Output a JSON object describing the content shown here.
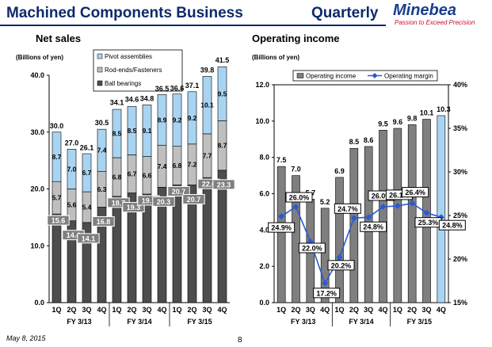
{
  "header": {
    "title": "Machined Components Business",
    "period": "Quarterly",
    "logo_name": "Minebea",
    "logo_tagline": "Passion to Exceed Precision"
  },
  "footer": {
    "date": "May 8, 2015",
    "page": "8"
  },
  "chart_data": [
    {
      "type": "bar",
      "stacked": true,
      "title": "Net sales",
      "ylabel": "(Billions of yen)",
      "ylim": [
        0,
        40
      ],
      "yticks": [
        "0.0",
        "10.0",
        "20.0",
        "30.0",
        "40.0"
      ],
      "categories": [
        "1Q",
        "2Q",
        "3Q",
        "4Q",
        "1Q",
        "2Q",
        "3Q",
        "4Q",
        "1Q",
        "2Q",
        "3Q",
        "4Q"
      ],
      "groups": [
        "FY 3/13",
        "FY 3/14",
        "FY 3/15"
      ],
      "legend_position": "top",
      "series": [
        {
          "name": "Ball bearings",
          "color": "#4d4d4d",
          "values": [
            15.6,
            14.4,
            14.1,
            16.8,
            18.7,
            19.3,
            19.1,
            20.3,
            20.7,
            20.7,
            22.0,
            23.3
          ],
          "labels": [
            "15.6",
            "14.4",
            "14.1",
            "16.8",
            "18.7",
            "19.3",
            "19.1",
            "20.3",
            "20.7",
            "20.7",
            "22.0",
            "23.3"
          ]
        },
        {
          "name": "Rod-ends/Fasteners",
          "color": "#bfbfbf",
          "values": [
            5.7,
            5.6,
            5.4,
            6.3,
            6.8,
            6.7,
            6.6,
            7.4,
            6.8,
            7.2,
            7.7,
            8.7
          ],
          "labels": [
            "5.7",
            "5.6",
            "5.4",
            "6.3",
            "6.8",
            "6.7",
            "6.6",
            "7.4",
            "6.8",
            "7.2",
            "7.7",
            "8.7"
          ]
        },
        {
          "name": "Pivot assemblies",
          "color": "#a8d4f2",
          "values": [
            8.7,
            7.0,
            6.7,
            7.4,
            8.5,
            8.5,
            9.1,
            8.9,
            9.2,
            9.2,
            10.1,
            9.5
          ],
          "labels": [
            "8.7",
            "7.0",
            "6.7",
            "7.4",
            "8.5",
            "8.5",
            "9.1",
            "8.9",
            "9.2",
            "9.2",
            "10.1",
            "9.5"
          ]
        }
      ],
      "totals": [
        30.0,
        27.0,
        26.1,
        30.5,
        34.1,
        34.6,
        34.8,
        36.5,
        36.6,
        37.1,
        39.8,
        41.5
      ],
      "total_labels": [
        "30.0",
        "27.0",
        "26.1",
        "30.5",
        "34.1",
        "34.6",
        "34.8",
        "36.5",
        "36.6",
        "37.1",
        "39.8",
        "41.5"
      ]
    },
    {
      "type": "bar+line",
      "title": "Operating income",
      "ylabel": "(Billions of yen)",
      "ylim": [
        0,
        12
      ],
      "yticks": [
        "0.0",
        "2.0",
        "4.0",
        "6.0",
        "8.0",
        "10.0",
        "12.0"
      ],
      "y2lim": [
        15,
        40
      ],
      "y2ticks": [
        "15%",
        "20%",
        "25%",
        "30%",
        "35%",
        "40%"
      ],
      "categories": [
        "1Q",
        "2Q",
        "3Q",
        "4Q",
        "1Q",
        "2Q",
        "3Q",
        "4Q",
        "1Q",
        "2Q",
        "3Q",
        "4Q"
      ],
      "groups": [
        "FY 3/13",
        "FY 3/14",
        "FY 3/15"
      ],
      "legend_position": "top",
      "series": [
        {
          "name": "Operating income",
          "kind": "bar",
          "color": "#7f7f7f",
          "highlight_color": "#a8d4f2",
          "values": [
            7.5,
            7.0,
            5.7,
            5.2,
            6.9,
            8.5,
            8.6,
            9.5,
            9.6,
            9.8,
            10.1,
            10.3
          ],
          "labels": [
            "7.5",
            "7.0",
            "5.7",
            "5.2",
            "6.9",
            "8.5",
            "8.6",
            "9.5",
            "9.6",
            "9.8",
            "10.1",
            "10.3"
          ]
        },
        {
          "name": "Operating margin",
          "kind": "line",
          "axis": "right",
          "color": "#2a5ad4",
          "values": [
            24.9,
            26.0,
            22.0,
            17.2,
            20.2,
            24.7,
            24.8,
            26.0,
            26.1,
            26.4,
            25.3,
            24.8
          ],
          "labels": [
            "24.9%",
            "26.0%",
            "22.0%",
            "17.2%",
            "20.2%",
            "24.7%",
            "24.8%",
            "26.0%",
            "26.1%",
            "26.4%",
            "25.3%",
            "24.8%"
          ]
        }
      ]
    }
  ]
}
